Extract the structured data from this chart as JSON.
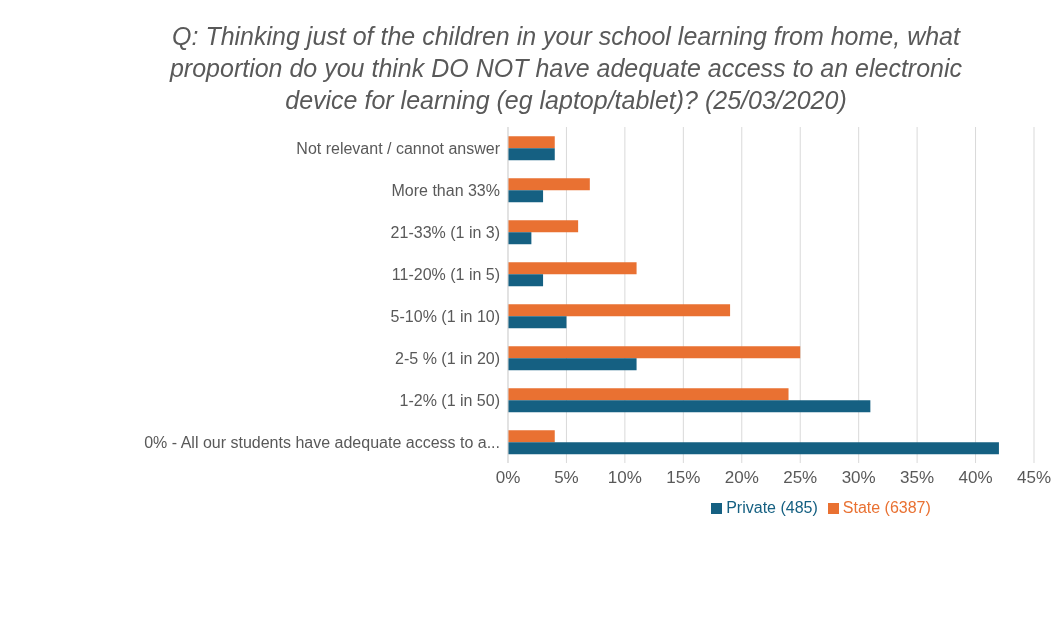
{
  "chart_data": {
    "type": "bar",
    "orientation": "horizontal",
    "title": "Q: Thinking just of the children in your school learning from home, what proportion do you think DO NOT have adequate access to an electronic device for learning (eg laptop/tablet)? (25/03/2020)",
    "categories": [
      "Not relevant / cannot answer",
      "More than 33%",
      "21-33% (1 in 3)",
      "11-20% (1 in 5)",
      "5-10% (1 in 10)",
      "2-5 % (1 in 20)",
      "1-2% (1 in 50)",
      "0% - All our students have adequate access to a..."
    ],
    "series": [
      {
        "name": "State (6387)",
        "color": "#e97132",
        "values": [
          4,
          7,
          6,
          11,
          19,
          25,
          24,
          4
        ]
      },
      {
        "name": "Private (485)",
        "color": "#156082",
        "values": [
          4,
          3,
          2,
          3,
          5,
          11,
          31,
          42
        ]
      }
    ],
    "xlim": [
      0,
      45
    ],
    "xticks": [
      {
        "value": 0,
        "label": "0%"
      },
      {
        "value": 5,
        "label": "5%"
      },
      {
        "value": 10,
        "label": "10%"
      },
      {
        "value": 15,
        "label": "15%"
      },
      {
        "value": 20,
        "label": "20%"
      },
      {
        "value": 25,
        "label": "25%"
      },
      {
        "value": 30,
        "label": "30%"
      },
      {
        "value": 35,
        "label": "35%"
      },
      {
        "value": 40,
        "label": "40%"
      },
      {
        "value": 45,
        "label": "45%"
      }
    ],
    "grid": "x",
    "legend": "bottom"
  }
}
